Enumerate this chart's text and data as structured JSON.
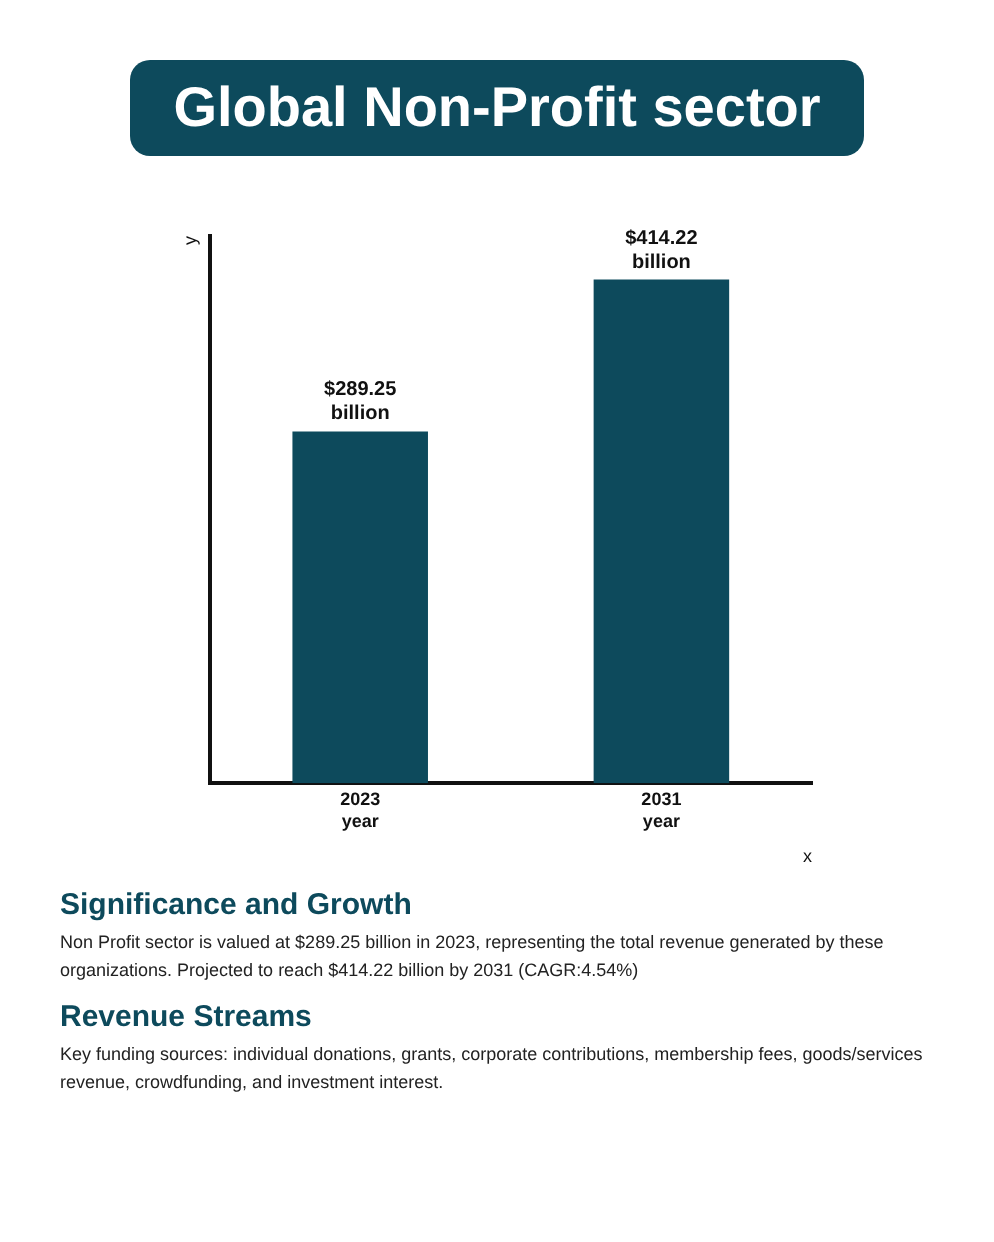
{
  "chart_data": {
    "type": "bar",
    "title": "Global Non-Profit sector",
    "xlabel": "x",
    "ylabel": "y",
    "categories": [
      "2023 year",
      "2031 year"
    ],
    "values": [
      289.25,
      414.22
    ],
    "value_labels": [
      "$289.25 billion",
      "$414.22 billion"
    ],
    "color": "#0d4a5c",
    "grid": false,
    "legend": false,
    "tick_labels": "x",
    "annotations": [
      "Significance and Growth",
      "Non Profit sector is valued at $289.25 billion in 2023, representing the total revenue generated by these organizations. Projected to reach $414.22 billion by 2031 (CAGR:4.54%)",
      "Revenue Streams",
      "Key funding sources: individual donations, grants, corporate contributions, membership fees, goods/services revenue, crowdfunding, and investment interest."
    ]
  }
}
